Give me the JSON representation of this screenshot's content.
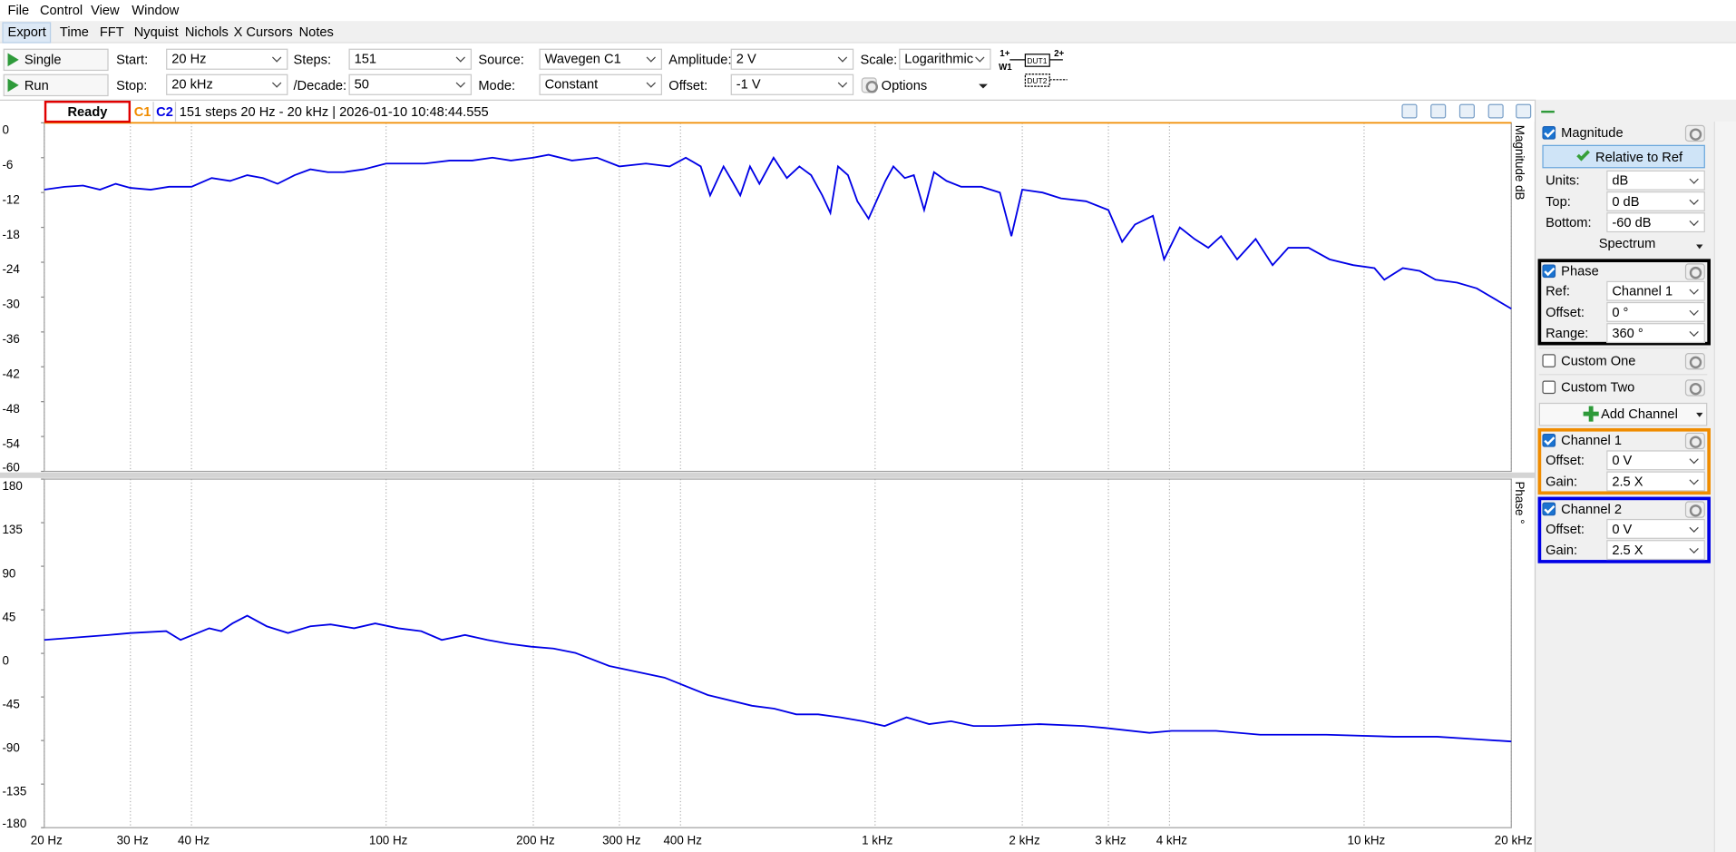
{
  "ui": {
    "menu": [
      "File",
      "Control",
      "View",
      "Window"
    ],
    "tabs": [
      "Export",
      "Time",
      "FFT",
      "Nyquist",
      "Nichols",
      "X Cursors",
      "Notes"
    ],
    "toolbar": {
      "single": "Single",
      "run": "Run",
      "options": "Options",
      "fields": [
        [
          {
            "label": "Start:",
            "value": "20 Hz"
          },
          {
            "label": "Steps:",
            "value": "151"
          },
          {
            "label": "Source:",
            "value": "Wavegen C1"
          },
          {
            "label": "Amplitude:",
            "value": "2 V"
          },
          {
            "label": "Scale:",
            "value": "Logarithmic"
          }
        ],
        [
          {
            "label": "Stop:",
            "value": "20 kHz"
          },
          {
            "label": "/Decade:",
            "value": "50"
          },
          {
            "label": "Mode:",
            "value": "Constant"
          },
          {
            "label": "Offset:",
            "value": "-1 V"
          }
        ]
      ],
      "diagram": [
        "1+",
        "2+",
        "W1",
        "DUT1",
        "DUT2"
      ]
    },
    "status": {
      "state": "Ready",
      "info": "151 steps  20 Hz - 20 kHz | 2026-01-10 10:48:44.555"
    },
    "panel": {
      "magnitude": {
        "title": "Magnitude",
        "button": "Relative to Ref",
        "rows": [
          [
            "Units:",
            "dB"
          ],
          [
            "Top:",
            "0 dB"
          ],
          [
            "Bottom:",
            "-60 dB"
          ]
        ],
        "mode": "Spectrum"
      },
      "phase": {
        "title": "Phase",
        "rows": [
          [
            "Ref:",
            "Channel 1"
          ],
          [
            "Offset:",
            "0 °"
          ],
          [
            "Range:",
            "360 °"
          ]
        ]
      },
      "custom": [
        "Custom One",
        "Custom Two"
      ],
      "add": "Add Channel",
      "channels": [
        {
          "title": "Channel 1",
          "rows": [
            [
              "Offset:",
              "0 V"
            ],
            [
              "Gain:",
              "2.5 X"
            ]
          ]
        },
        {
          "title": "Channel 2",
          "rows": [
            [
              "Offset:",
              "0 V"
            ],
            [
              "Gain:",
              "2.5 X"
            ]
          ]
        }
      ]
    }
  },
  "chart_data": [
    {
      "type": "line",
      "ylabel": "Magnitude dB",
      "xscale": "log",
      "grid": true,
      "xlim": [
        20,
        20000
      ],
      "xticks": [
        20,
        30,
        40,
        100,
        200,
        300,
        400,
        1000,
        2000,
        3000,
        4000,
        10000,
        20000
      ],
      "ylim": [
        -60,
        0
      ],
      "yticks": [
        0,
        -6,
        -12,
        -18,
        -24,
        -30,
        -36,
        -42,
        -48,
        -54,
        -60
      ],
      "x": [
        20,
        22,
        24,
        26,
        28,
        30,
        33,
        36,
        40,
        44,
        48,
        52,
        56,
        60,
        65,
        70,
        76,
        82,
        90,
        100,
        110,
        120,
        135,
        150,
        165,
        180,
        200,
        215,
        240,
        270,
        300,
        340,
        380,
        410,
        440,
        460,
        490,
        510,
        530,
        555,
        580,
        620,
        660,
        700,
        740,
        780,
        810,
        840,
        880,
        920,
        970,
        1050,
        1090,
        1150,
        1200,
        1260,
        1320,
        1400,
        1500,
        1650,
        1800,
        1900,
        2000,
        2200,
        2400,
        2700,
        3000,
        3200,
        3400,
        3700,
        3900,
        4200,
        4500,
        4800,
        5100,
        5500,
        6000,
        6500,
        7000,
        7700,
        8500,
        9500,
        10500,
        11000,
        12000,
        13000,
        14000,
        15500,
        17000,
        20000
      ],
      "series": [
        {
          "name": "C1",
          "color": "#f08c00",
          "x": [
            20,
            20000
          ],
          "values": [
            0,
            0
          ]
        },
        {
          "name": "C2",
          "color": "#0000e6",
          "values": [
            -11.5,
            -11,
            -10.8,
            -11.5,
            -10.5,
            -11.2,
            -11.5,
            -11,
            -11,
            -9.5,
            -10,
            -9,
            -9.5,
            -10.5,
            -9,
            -8,
            -8.5,
            -8.5,
            -8,
            -7,
            -7,
            -7,
            -6.5,
            -6.5,
            -6,
            -6.5,
            -6,
            -5.5,
            -6.5,
            -6,
            -7.5,
            -7,
            -7.5,
            -6,
            -7.5,
            -12.5,
            -7.5,
            -10,
            -12.5,
            -7.5,
            -10.5,
            -6,
            -9.5,
            -7.5,
            -9,
            -12.5,
            -15.5,
            -7.5,
            -9,
            -13.5,
            -16.5,
            -10,
            -7.5,
            -9.5,
            -9,
            -15,
            -8.5,
            -10,
            -11,
            -11,
            -12,
            -19.5,
            -11.5,
            -12,
            -13,
            -13.5,
            -15,
            -20.5,
            -17.5,
            -16,
            -23.5,
            -18,
            -20,
            -21.5,
            -19.5,
            -23.5,
            -20,
            -24.5,
            -21.5,
            -21.5,
            -23.5,
            -24.5,
            -25,
            -27,
            -25,
            -25.5,
            -27,
            -27.5,
            -28.5,
            -32
          ]
        }
      ]
    },
    {
      "type": "line",
      "ylabel": "Phase °",
      "xscale": "log",
      "grid": true,
      "xlim": [
        20,
        20000
      ],
      "xticks": [
        {
          "value": 20,
          "label": "20 Hz"
        },
        {
          "value": 30,
          "label": "30 Hz"
        },
        {
          "value": 40,
          "label": "40 Hz"
        },
        {
          "value": 100,
          "label": "100 Hz"
        },
        {
          "value": 200,
          "label": "200 Hz"
        },
        {
          "value": 300,
          "label": "300 Hz"
        },
        {
          "value": 400,
          "label": "400 Hz"
        },
        {
          "value": 1000,
          "label": "1 kHz"
        },
        {
          "value": 2000,
          "label": "2 kHz"
        },
        {
          "value": 3000,
          "label": "3 kHz"
        },
        {
          "value": 4000,
          "label": "4 kHz"
        },
        {
          "value": 10000,
          "label": "10 kHz"
        },
        {
          "value": 20000,
          "label": "20 kHz"
        }
      ],
      "ylim": [
        -180,
        180
      ],
      "yticks": [
        180,
        135,
        90,
        45,
        0,
        -45,
        -90,
        -135,
        -180
      ],
      "x": [
        20,
        27,
        30,
        35.5,
        38,
        43.5,
        46,
        48.5,
        52,
        57,
        63,
        70,
        77,
        86,
        95,
        106,
        118,
        130,
        145,
        161,
        178,
        198,
        220,
        244,
        286,
        371,
        455,
        560,
        622,
        690,
        765,
        850,
        945,
        1046,
        1160,
        1290,
        1430,
        1590,
        1760,
        2170,
        2670,
        2960,
        3640,
        4040,
        4980,
        6130,
        8380,
        11500,
        14100,
        17400,
        20000
      ],
      "series": [
        {
          "color": "#0000e6",
          "values": [
            14,
            19,
            21,
            23,
            14,
            26,
            23,
            31,
            39,
            28,
            21,
            28,
            30,
            26,
            31,
            26,
            23,
            14,
            19,
            14,
            10,
            7,
            5,
            0.5,
            -13,
            -25,
            -43,
            -54,
            -57,
            -63,
            -63,
            -66,
            -70,
            -75,
            -66,
            -73,
            -70,
            -75,
            -75,
            -73,
            -75,
            -77,
            -82,
            -80,
            -80,
            -84,
            -84,
            -86,
            -86,
            -89,
            -91
          ]
        }
      ]
    }
  ]
}
